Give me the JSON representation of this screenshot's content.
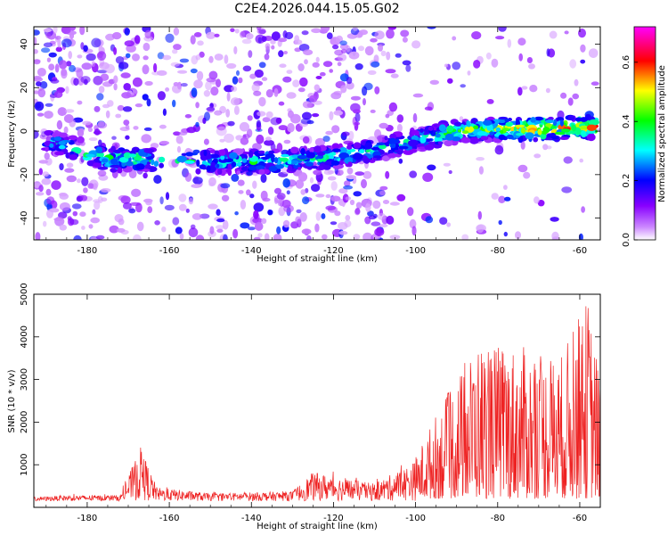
{
  "title": "C2E4.2026.044.15.05.G02",
  "chart_data": [
    {
      "type": "heatmap",
      "title": "C2E4.2026.044.15.05.G02",
      "xlabel": "Height of straight line (km)",
      "ylabel": "Frequency (Hz)",
      "xlim": [
        -193,
        -55
      ],
      "ylim": [
        -50,
        48
      ],
      "xticks": [
        -180,
        -160,
        -140,
        -120,
        -100,
        -80,
        -60
      ],
      "yticks": [
        -40,
        -20,
        0,
        20,
        40
      ],
      "colorbar": {
        "label": "Normalized spectral amplitude",
        "range": [
          0,
          0.72
        ],
        "ticks": [
          0.0,
          0.2,
          0.4,
          0.6
        ],
        "tick_labels": [
          "0.0",
          "0.2",
          "0.4",
          "0.6"
        ],
        "colors": [
          "#ffffff",
          "#8800ff",
          "#0000ff",
          "#00ffff",
          "#00ff00",
          "#ffff00",
          "#ff0000",
          "#ff00ff"
        ]
      },
      "ridge": {
        "description": "high-amplitude band",
        "points": [
          {
            "x": -190,
            "f": -4,
            "amp": 0.3
          },
          {
            "x": -175,
            "f": -13,
            "amp": 0.45
          },
          {
            "x": -168,
            "f": -13,
            "amp": 0.4
          },
          {
            "x": -148,
            "f": -14,
            "amp": 0.35
          },
          {
            "x": -135,
            "f": -14,
            "amp": 0.4
          },
          {
            "x": -120,
            "f": -12,
            "amp": 0.38
          },
          {
            "x": -108,
            "f": -8,
            "amp": 0.35
          },
          {
            "x": -100,
            "f": -4,
            "amp": 0.35
          },
          {
            "x": -90,
            "f": 0,
            "amp": 0.45
          },
          {
            "x": -80,
            "f": 1,
            "amp": 0.5
          },
          {
            "x": -68,
            "f": 1,
            "amp": 0.6
          },
          {
            "x": -57,
            "f": 2,
            "amp": 0.55
          }
        ]
      }
    },
    {
      "type": "line",
      "xlabel": "Height of straight line (km)",
      "ylabel": "SNR (10 * v/v)",
      "xlim": [
        -193,
        -55
      ],
      "ylim": [
        0,
        5000
      ],
      "xticks": [
        -180,
        -160,
        -140,
        -120,
        -100,
        -80,
        -60
      ],
      "yticks": [
        1000,
        2000,
        3000,
        4000,
        5000
      ],
      "color": "#ee2222",
      "envelope": [
        {
          "x": -193,
          "y": 250
        },
        {
          "x": -185,
          "y": 300
        },
        {
          "x": -172,
          "y": 300
        },
        {
          "x": -167,
          "y": 1550
        },
        {
          "x": -163,
          "y": 500
        },
        {
          "x": -150,
          "y": 350
        },
        {
          "x": -130,
          "y": 400
        },
        {
          "x": -125,
          "y": 900
        },
        {
          "x": -110,
          "y": 600
        },
        {
          "x": -100,
          "y": 1200
        },
        {
          "x": -95,
          "y": 2200
        },
        {
          "x": -85,
          "y": 3900
        },
        {
          "x": -75,
          "y": 3800
        },
        {
          "x": -65,
          "y": 3500
        },
        {
          "x": -58,
          "y": 4950
        },
        {
          "x": -55,
          "y": 3000
        }
      ]
    }
  ]
}
